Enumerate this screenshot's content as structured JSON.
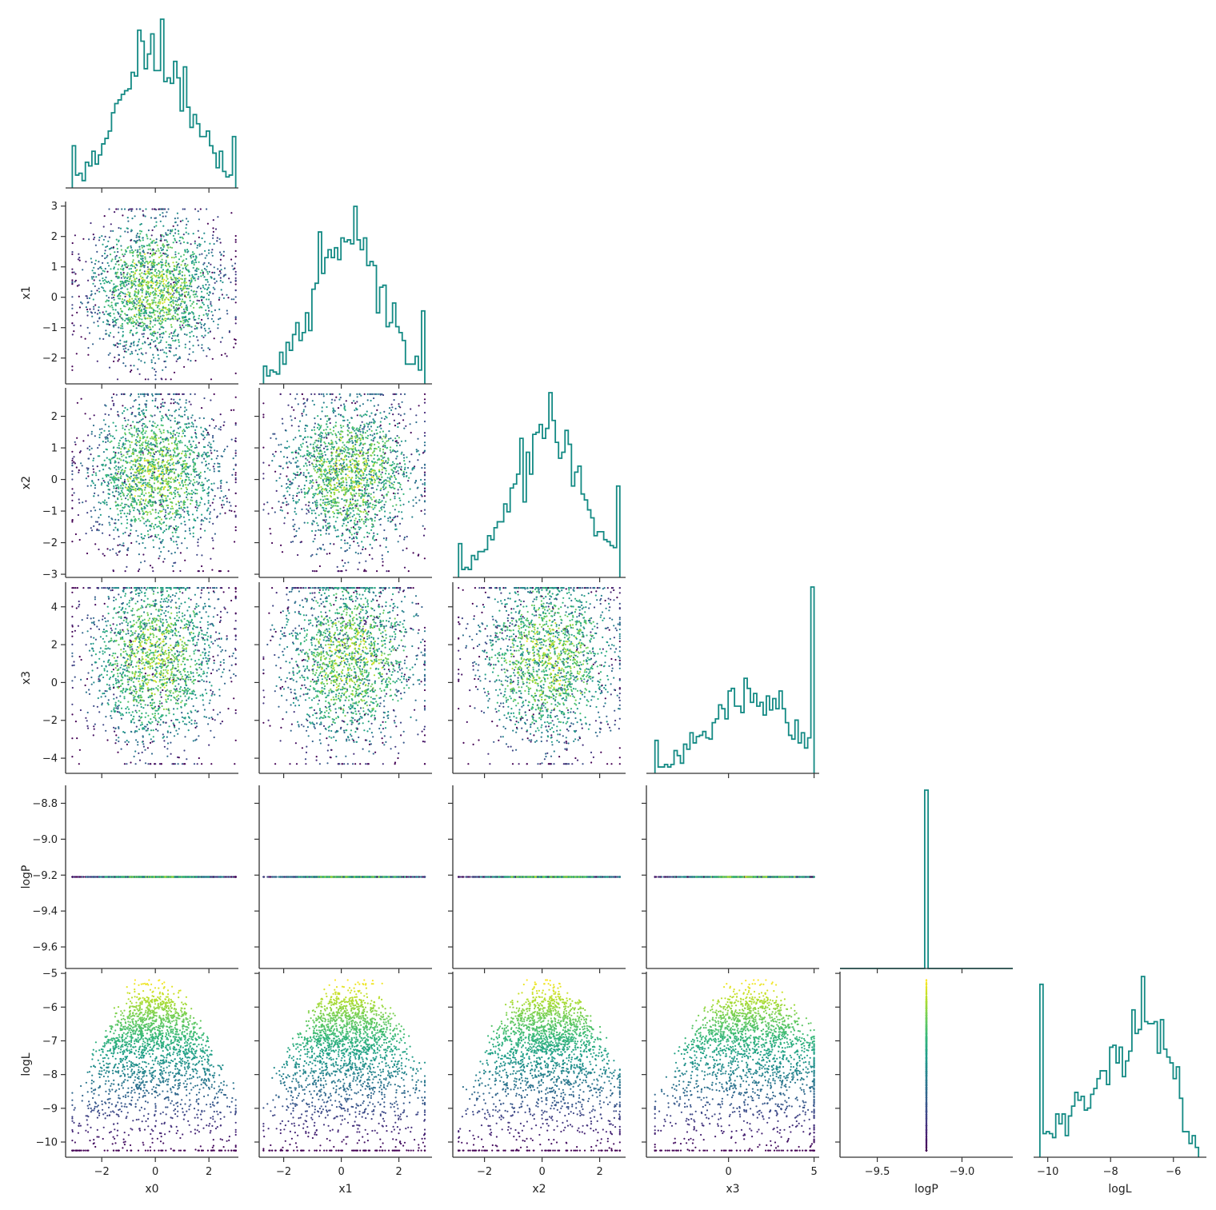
{
  "chart_data": {
    "type": "scatter",
    "subtype": "corner-plot (pair grid, lower triangle)",
    "variables": [
      "x0",
      "x1",
      "x2",
      "x3",
      "logP",
      "logL"
    ],
    "ranges": {
      "x0": [
        -3.35,
        3.1
      ],
      "x1": [
        -2.85,
        3.15
      ],
      "x2": [
        -3.1,
        2.9
      ],
      "x3": [
        -4.8,
        5.3
      ],
      "logP": [
        -9.72,
        -8.7
      ],
      "logL": [
        -10.45,
        -4.95
      ]
    },
    "ticks": {
      "x0": {
        "values": [
          -2,
          0,
          2
        ],
        "labels": [
          "−2",
          "0",
          "2"
        ]
      },
      "x1": {
        "values": [
          -2,
          -1,
          0,
          1,
          2,
          3
        ],
        "labels": [
          "−2",
          "−1",
          "0",
          "1",
          "2",
          "3"
        ]
      },
      "x1_bottom": {
        "values": [
          -2,
          0,
          2
        ],
        "labels": [
          "−2",
          "0",
          "2"
        ]
      },
      "x2": {
        "values": [
          -3,
          -2,
          -1,
          0,
          1,
          2
        ],
        "labels": [
          "−3",
          "−2",
          "−1",
          "0",
          "1",
          "2"
        ]
      },
      "x2_bottom": {
        "values": [
          -2,
          0,
          2
        ],
        "labels": [
          "−2",
          "0",
          "2"
        ]
      },
      "x3": {
        "values": [
          -4,
          -2,
          0,
          2,
          4
        ],
        "labels": [
          "−4",
          "−2",
          "0",
          "2",
          "4"
        ]
      },
      "x3_bottom": {
        "values": [
          0,
          5
        ],
        "labels": [
          "0",
          "5"
        ]
      },
      "logP": {
        "values": [
          -9.6,
          -9.4,
          -9.2,
          -9.0,
          -8.8
        ],
        "labels": [
          "−9.6",
          "−9.4",
          "−9.2",
          "−9.0",
          "−8.8"
        ]
      },
      "logP_bottom": {
        "values": [
          -9.5,
          -9.0
        ],
        "labels": [
          "−9.5",
          "−9.0"
        ]
      },
      "logL": {
        "values": [
          -10,
          -9,
          -8,
          -7,
          -6,
          -5
        ],
        "labels": [
          "−10",
          "−9",
          "−8",
          "−7",
          "−6",
          "−5"
        ]
      },
      "logL_bottom": {
        "values": [
          -10,
          -8,
          -6
        ],
        "labels": [
          "−10",
          "−8",
          "−6"
        ]
      }
    },
    "constant_logP": -9.21,
    "n_samples": 2000,
    "distributions": {
      "x0": "approximately normal, mean 0, sd ~1.3, clipped to [-3.1, 3.0]",
      "x1": "approximately normal, mean 0.3, sd ~1.2, clipped to [-2.7, 2.9]",
      "x2": "approximately normal, mean 0.2, sd ~1.2, clipped to [-2.9, 2.7]",
      "x3": "broad, mean 1.3, sd ~2.4, clipped to [-4.3, 5.0]",
      "logP": "constant at -9.21",
      "logL": "peaks near -6.5, tail to -10.2, max about -5.2"
    },
    "color_scale": "viridis mapped to logL",
    "hist_color": "#138a84",
    "grid": false,
    "legend": "none"
  }
}
